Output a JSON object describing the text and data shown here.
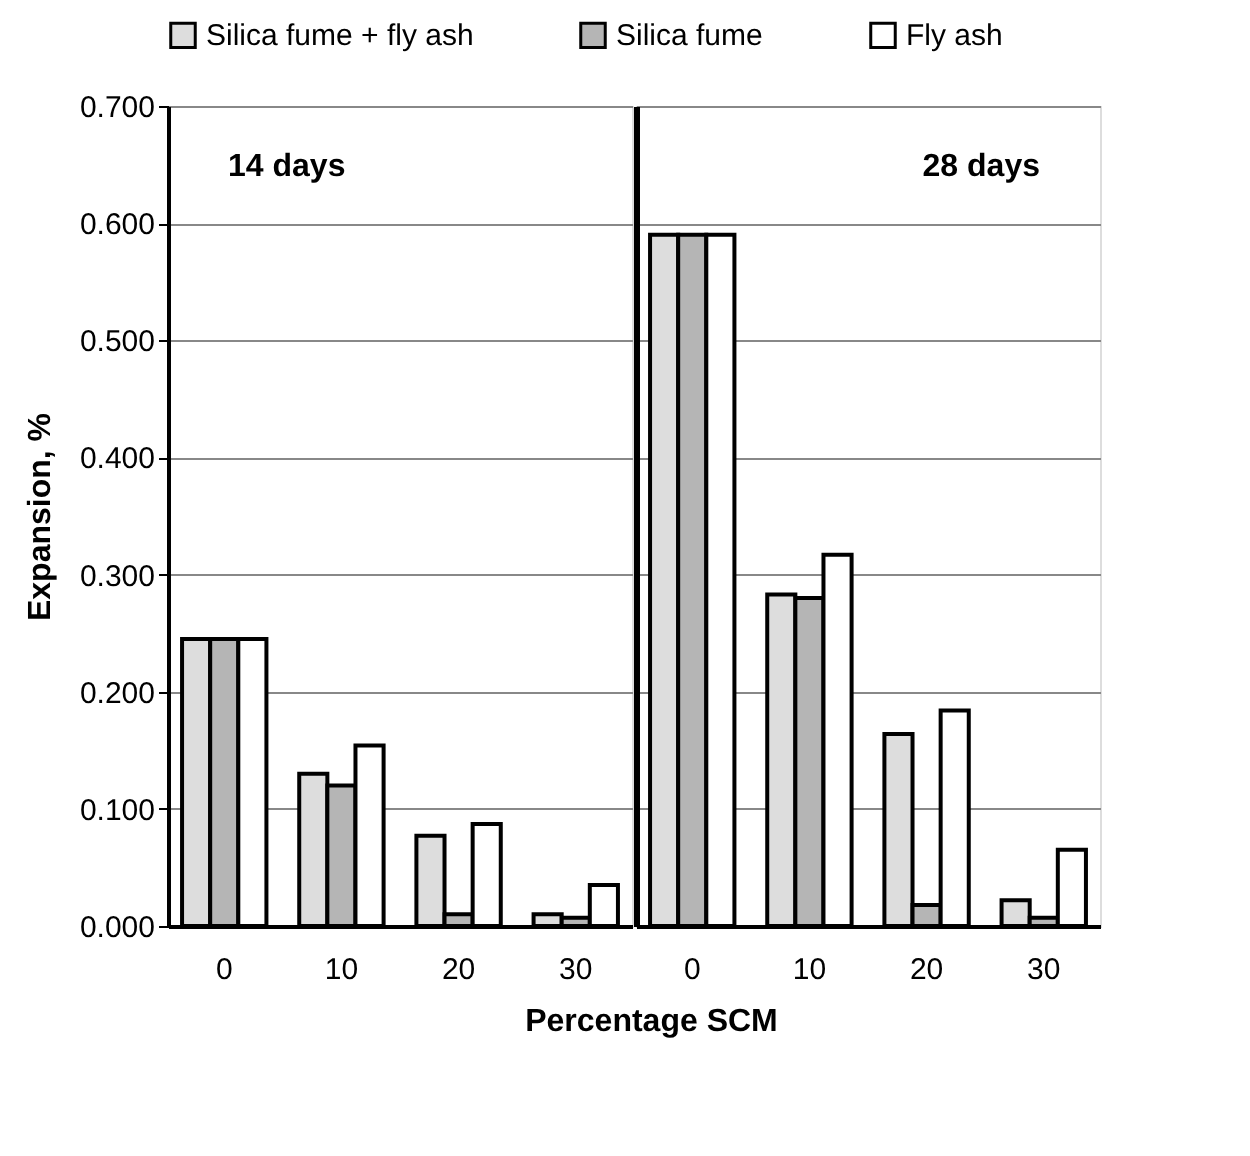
{
  "chart_data": [
    {
      "type": "bar",
      "ylabel": "Expansion, %",
      "xlabel": "Percentage SCM",
      "annotations": [
        "14 days"
      ],
      "categories": [
        "0",
        "10",
        "20",
        "30"
      ],
      "series": [
        {
          "name": "Silica fume + fly ash",
          "color": "#dddddd",
          "values": [
            0.245,
            0.13,
            0.077,
            0.01
          ]
        },
        {
          "name": "Silica fume",
          "color": "#b5b5b5",
          "values": [
            0.245,
            0.12,
            0.01,
            0.007
          ]
        },
        {
          "name": "Fly ash",
          "color": "#ffffff",
          "values": [
            0.245,
            0.154,
            0.087,
            0.035
          ]
        }
      ],
      "ylim": [
        0,
        0.7
      ],
      "yticks": [
        {
          "value": 0,
          "label": "0.000"
        },
        {
          "value": 0.1,
          "label": "0.100"
        },
        {
          "value": 0.2,
          "label": "0.200"
        },
        {
          "value": 0.3,
          "label": "0.300"
        },
        {
          "value": 0.4,
          "label": "0.400"
        },
        {
          "value": 0.5,
          "label": "0.500"
        },
        {
          "value": 0.6,
          "label": "0.600"
        },
        {
          "value": 0.7,
          "label": "0.700"
        }
      ],
      "grid": "y",
      "legend": "top"
    },
    {
      "type": "bar",
      "annotations": [
        "28 days"
      ],
      "categories": [
        "0",
        "10",
        "20",
        "30"
      ],
      "series": [
        {
          "name": "Silica fume + fly ash",
          "color": "#dddddd",
          "values": [
            0.59,
            0.283,
            0.164,
            0.022
          ]
        },
        {
          "name": "Silica fume",
          "color": "#b5b5b5",
          "values": [
            0.59,
            0.28,
            0.018,
            0.007
          ]
        },
        {
          "name": "Fly ash",
          "color": "#ffffff",
          "values": [
            0.59,
            0.317,
            0.184,
            0.065
          ]
        }
      ],
      "ylim": [
        0,
        0.7
      ],
      "yticks": [
        0,
        0.1,
        0.2,
        0.3,
        0.4,
        0.5,
        0.6,
        0.7
      ],
      "grid": "y",
      "tick_labels": "x"
    }
  ]
}
